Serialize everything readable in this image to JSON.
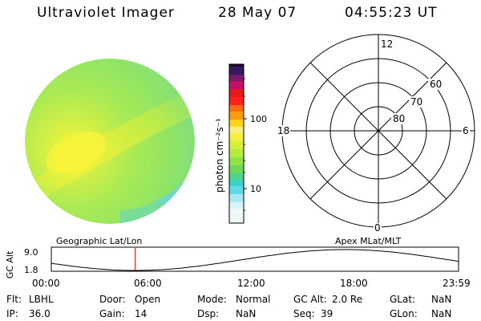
{
  "header": {
    "instrument": "Ultraviolet Imager",
    "date": "28 May 07",
    "time": "04:55:23 UT"
  },
  "colorbar": {
    "unit_label": "photon cm⁻²s⁻¹",
    "ticks": [
      "100",
      "10"
    ]
  },
  "polar_plot": {
    "mlt_labels": [
      "12",
      "18",
      "6",
      "0"
    ],
    "lat_labels": [
      "60",
      "70",
      "80"
    ]
  },
  "orbit_panel": {
    "left_title": "Geographic Lat/Lon",
    "right_title": "Apex MLat/MLT",
    "y_label": "GC Alt",
    "y_ticks": [
      "9.0",
      "1.8"
    ],
    "x_ticks": [
      "00:00",
      "06:00",
      "12:00",
      "18:00",
      "23:59"
    ],
    "current_time_fraction": 0.206,
    "colors": {
      "curve": "#000000",
      "marker": "#ff0000"
    }
  },
  "status": {
    "flt": {
      "label": "Flt:",
      "value": "LBHL"
    },
    "ip": {
      "label": "IP:",
      "value": "36.0"
    },
    "door": {
      "label": "Door:",
      "value": "Open"
    },
    "gain": {
      "label": "Gain:",
      "value": "14"
    },
    "mode": {
      "label": "Mode:",
      "value": "Normal"
    },
    "dsp": {
      "label": "Dsp:",
      "value": "NaN"
    },
    "gcalt": {
      "label": "GC Alt:",
      "value": "2.0 Re"
    },
    "seq": {
      "label": "Seq:",
      "value": "39"
    },
    "glat": {
      "label": "GLat:",
      "value": "NaN"
    },
    "glon": {
      "label": "GLon:",
      "value": "NaN"
    }
  }
}
